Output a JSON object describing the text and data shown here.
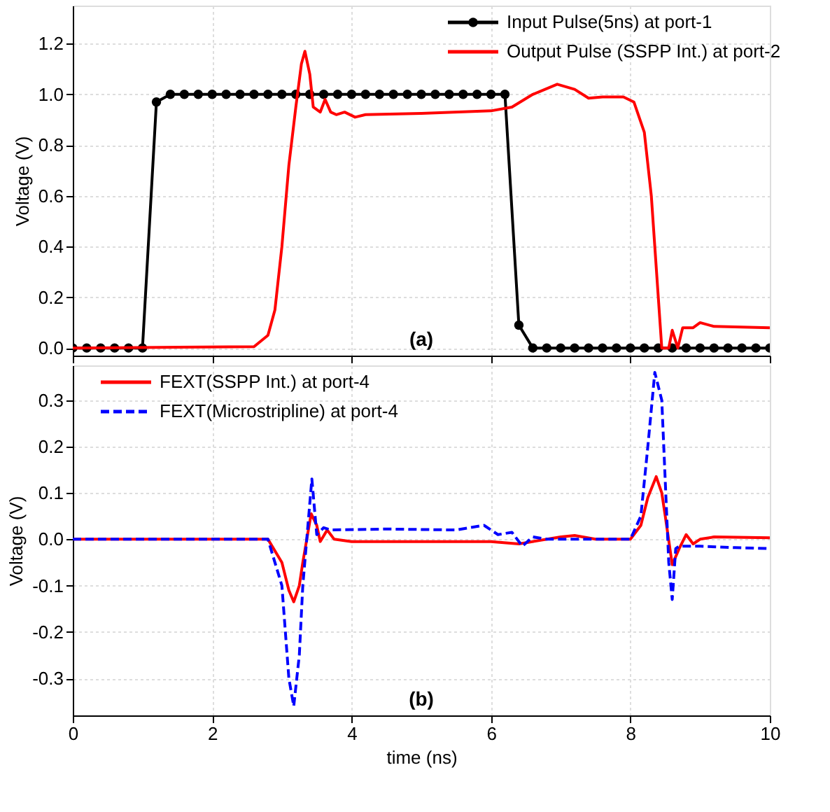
{
  "chart_data": [
    {
      "type": "line",
      "ylabel": "Voltage (V)",
      "xlim": [
        0,
        10
      ],
      "xticks": [
        0,
        2,
        4,
        6,
        8,
        10
      ],
      "ylim": [
        -0.03,
        1.35
      ],
      "yticks": [
        {
          "value": 0,
          "label": "0.0"
        },
        {
          "value": 0.2,
          "label": "0.2"
        },
        {
          "value": 0.4,
          "label": "0.4"
        },
        {
          "value": 0.6,
          "label": "0.6"
        },
        {
          "value": 0.8,
          "label": "0.8"
        },
        {
          "value": 1.0,
          "label": "1.0"
        },
        {
          "value": 1.2,
          "label": "1.2"
        }
      ],
      "tick_labels": "y",
      "grid": true,
      "legend": "top",
      "annotations": [
        "(a)"
      ],
      "series": [
        {
          "name": "Input Pulse(5ns) at port-1",
          "color": "#000000",
          "marker": "circle",
          "line_style": "solid",
          "x": [
            0,
            0.2,
            0.4,
            0.6,
            0.8,
            1.0,
            1.2,
            1.4,
            1.6,
            1.8,
            2.0,
            2.2,
            2.4,
            2.6,
            2.8,
            3.0,
            3.2,
            3.4,
            3.6,
            3.8,
            4.0,
            4.2,
            4.4,
            4.6,
            4.8,
            5.0,
            5.2,
            5.4,
            5.6,
            5.8,
            6.0,
            6.2,
            6.4,
            6.6,
            6.8,
            7.0,
            7.2,
            7.4,
            7.6,
            7.8,
            8.0,
            8.2,
            8.4,
            8.6,
            8.8,
            9.0,
            9.2,
            9.4,
            9.6,
            9.8,
            10.0
          ],
          "values": [
            0,
            0,
            0,
            0,
            0,
            0,
            0.97,
            1,
            1,
            1,
            1,
            1,
            1,
            1,
            1,
            1,
            1,
            1,
            1,
            1,
            1,
            1,
            1,
            1,
            1,
            1,
            1,
            1,
            1,
            1,
            1,
            1,
            0.09,
            0,
            0,
            0,
            0,
            0,
            0,
            0,
            0,
            0,
            0,
            0,
            0,
            0,
            0,
            0,
            0,
            0,
            0
          ]
        },
        {
          "name": "Output Pulse (SSPP Int.) at port-2",
          "color": "#ff0000",
          "marker": "none",
          "line_style": "solid",
          "x": [
            0,
            2.6,
            2.8,
            2.9,
            3.0,
            3.1,
            3.2,
            3.28,
            3.33,
            3.4,
            3.45,
            3.55,
            3.62,
            3.7,
            3.78,
            3.9,
            4.05,
            4.2,
            5.0,
            6.0,
            6.3,
            6.6,
            6.95,
            7.2,
            7.4,
            7.6,
            7.9,
            8.05,
            8.2,
            8.3,
            8.4,
            8.45,
            8.55,
            8.6,
            8.68,
            8.75,
            8.9,
            9.0,
            9.2,
            10
          ],
          "values": [
            0,
            0.005,
            0.05,
            0.15,
            0.4,
            0.72,
            0.95,
            1.12,
            1.17,
            1.08,
            0.95,
            0.93,
            0.98,
            0.93,
            0.92,
            0.93,
            0.91,
            0.92,
            0.925,
            0.935,
            0.95,
            1.0,
            1.04,
            1.02,
            0.985,
            0.99,
            0.99,
            0.97,
            0.85,
            0.6,
            0.2,
            0.0,
            0.0,
            0.07,
            0.0,
            0.08,
            0.08,
            0.1,
            0.085,
            0.08
          ]
        }
      ]
    },
    {
      "type": "line",
      "xlabel": "time (ns)",
      "ylabel": "Voltage (V)",
      "xlim": [
        0,
        10
      ],
      "xticks": [
        0,
        2,
        4,
        6,
        8,
        10
      ],
      "ylim": [
        -0.38,
        0.375
      ],
      "yticks": [
        {
          "value": -0.3,
          "label": "-0.3"
        },
        {
          "value": -0.2,
          "label": "-0.2"
        },
        {
          "value": -0.1,
          "label": "-0.1"
        },
        {
          "value": 0,
          "label": "0.0"
        },
        {
          "value": 0.1,
          "label": "0.1"
        },
        {
          "value": 0.2,
          "label": "0.2"
        },
        {
          "value": 0.3,
          "label": "0.3"
        }
      ],
      "grid": true,
      "legend": "top left",
      "annotations": [
        "(b)"
      ],
      "series": [
        {
          "name": "FEXT(SSPP Int.) at port-4",
          "color": "#ff0000",
          "marker": "none",
          "line_style": "solid",
          "x": [
            0,
            2.8,
            3.0,
            3.1,
            3.17,
            3.25,
            3.3,
            3.42,
            3.5,
            3.55,
            3.65,
            3.75,
            4.0,
            6.0,
            6.4,
            7.0,
            7.2,
            7.5,
            8.0,
            8.15,
            8.25,
            8.37,
            8.45,
            8.5,
            8.6,
            8.7,
            8.8,
            8.9,
            9.0,
            9.2,
            10
          ],
          "values": [
            0,
            0,
            -0.05,
            -0.11,
            -0.135,
            -0.1,
            -0.05,
            0.055,
            0.03,
            -0.005,
            0.02,
            0.0,
            -0.005,
            -0.005,
            -0.01,
            0.005,
            0.008,
            0.0,
            0.0,
            0.03,
            0.09,
            0.135,
            0.1,
            0.05,
            -0.055,
            -0.02,
            0.01,
            -0.01,
            0.0,
            0.005,
            0.003
          ]
        },
        {
          "name": "FEXT(Microstripline) at port-4",
          "color": "#0000ff",
          "marker": "none",
          "line_style": "dashed",
          "x": [
            0,
            2.8,
            3.0,
            3.1,
            3.17,
            3.25,
            3.3,
            3.43,
            3.5,
            3.6,
            3.7,
            4.5,
            5.5,
            5.9,
            6.1,
            6.3,
            6.45,
            6.6,
            6.8,
            8.0,
            8.15,
            8.25,
            8.35,
            8.45,
            8.55,
            8.6,
            8.65,
            8.7,
            9.0,
            9.5,
            10
          ],
          "values": [
            0,
            0,
            -0.1,
            -0.3,
            -0.36,
            -0.25,
            -0.1,
            0.13,
            0.01,
            0.025,
            0.02,
            0.022,
            0.02,
            0.03,
            0.01,
            0.015,
            -0.015,
            0.005,
            0.0,
            0.0,
            0.05,
            0.2,
            0.36,
            0.3,
            -0.05,
            -0.13,
            -0.02,
            -0.015,
            -0.015,
            -0.018,
            -0.02
          ]
        }
      ]
    }
  ]
}
